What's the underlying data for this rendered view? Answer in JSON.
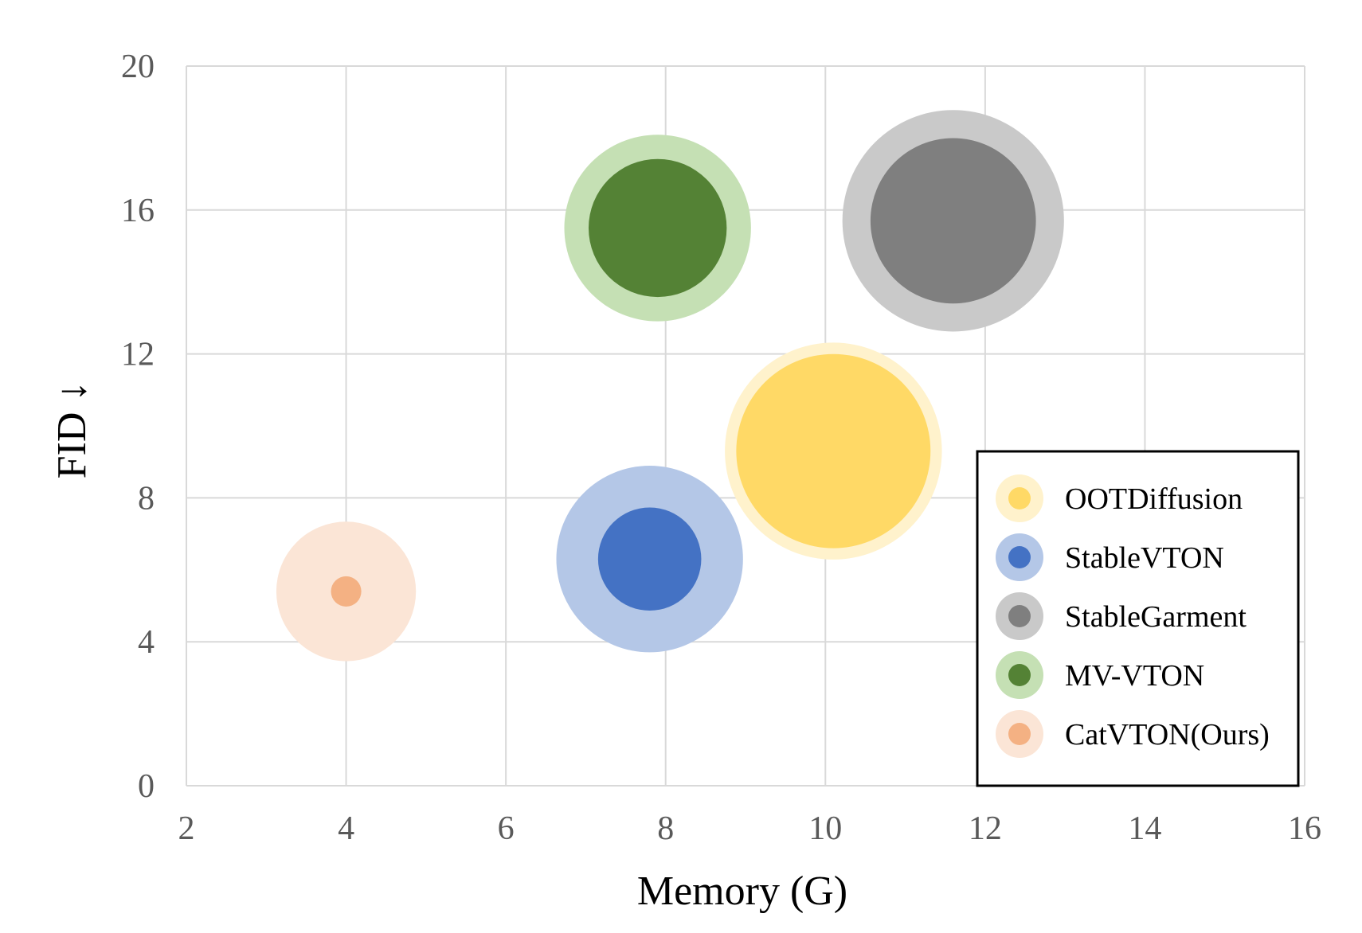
{
  "chart_data": {
    "type": "scatter",
    "xlabel": "Memory (G)",
    "ylabel": "FID ↓",
    "xlim": [
      2,
      16
    ],
    "ylim": [
      0,
      20
    ],
    "xticks": [
      2,
      4,
      6,
      8,
      10,
      12,
      14,
      16
    ],
    "yticks": [
      0,
      4,
      8,
      12,
      16,
      20
    ],
    "grid": true,
    "legend_position": "bottom-right",
    "series": [
      {
        "name": "OOTDiffusion",
        "x": 10.1,
        "y": 9.3,
        "outer_size": 14.3,
        "inner_size": 12.8,
        "outer_color": "#FFF2CC",
        "inner_color": "#FFD966"
      },
      {
        "name": "StableVTON",
        "x": 7.8,
        "y": 6.3,
        "outer_size": 12.3,
        "inner_size": 6.8,
        "outer_color": "#B4C7E7",
        "inner_color": "#4472C4"
      },
      {
        "name": "StableGarment",
        "x": 11.6,
        "y": 15.7,
        "outer_size": 14.6,
        "inner_size": 10.9,
        "outer_color": "#C9C9C9",
        "inner_color": "#7F7F7F"
      },
      {
        "name": "MV-VTON",
        "x": 7.9,
        "y": 15.5,
        "outer_size": 12.3,
        "inner_size": 9.1,
        "outer_color": "#C5E0B4",
        "inner_color": "#548235"
      },
      {
        "name": "CatVTON(Ours)",
        "x": 4.0,
        "y": 5.4,
        "outer_size": 9.2,
        "inner_size": 2.0,
        "outer_color": "#FBE5D6",
        "inner_color": "#F4B183"
      }
    ]
  }
}
